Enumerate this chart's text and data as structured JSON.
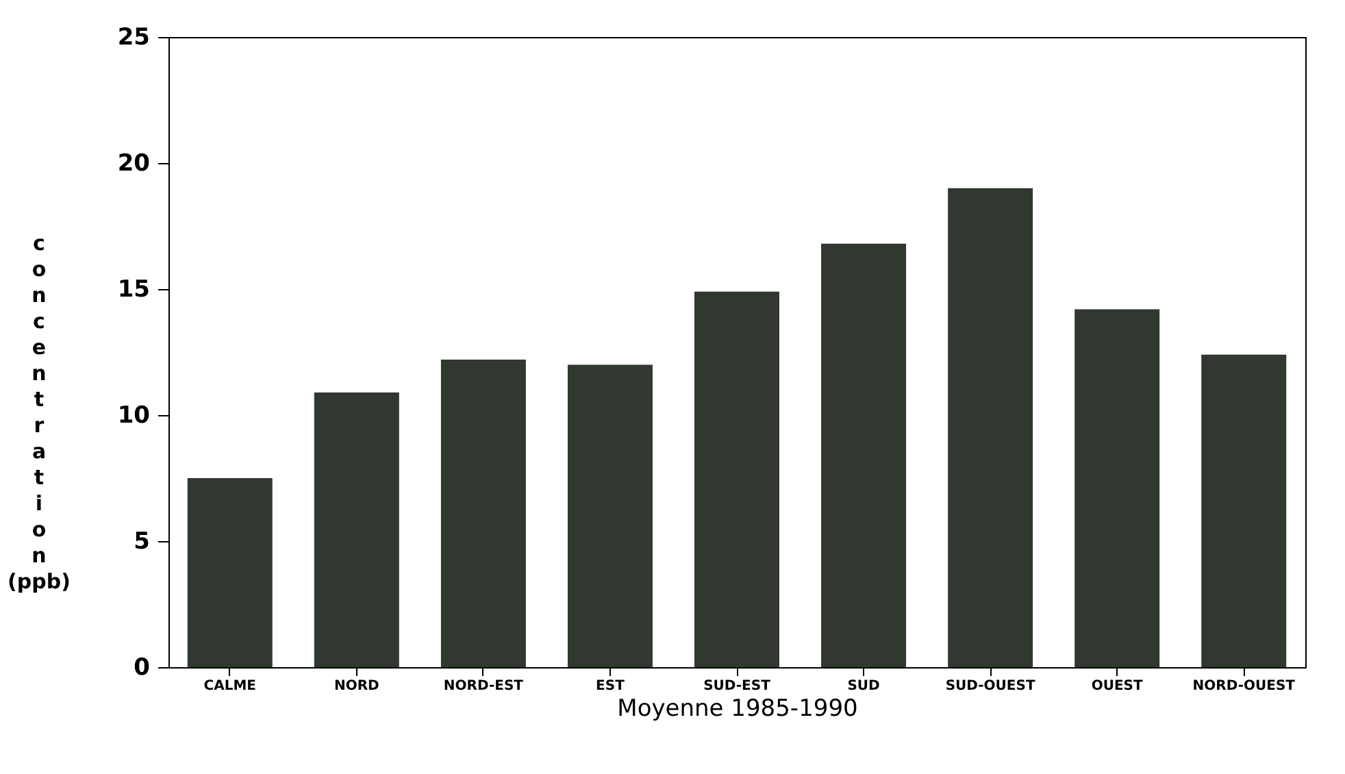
{
  "chart_data": {
    "type": "bar",
    "categories": [
      "CALME",
      "NORD",
      "NORD-EST",
      "EST",
      "SUD-EST",
      "SUD",
      "SUD-OUEST",
      "OUEST",
      "NORD-OUEST"
    ],
    "values": [
      7.5,
      10.9,
      12.2,
      12.0,
      14.9,
      16.8,
      19.0,
      14.2,
      12.4
    ],
    "color": "#303830",
    "xlabel": "Moyenne 1985-1990",
    "ylabel": "concentration (ppb)",
    "ylim": [
      0,
      25
    ],
    "yticks": [
      0,
      5,
      10,
      15,
      20,
      25
    ],
    "grid": false
  }
}
